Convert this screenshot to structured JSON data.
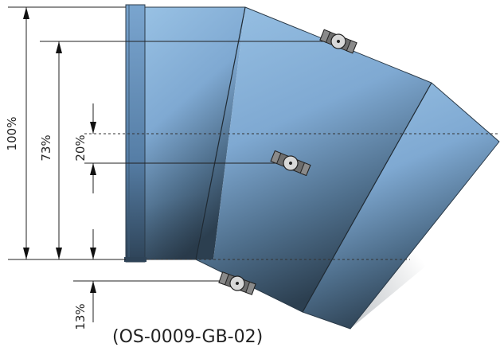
{
  "dimensions": {
    "full_height_label": "100%",
    "upper_valve_label": "73%",
    "middle_valve_label": "20%",
    "lower_valve_label": "13%"
  },
  "part_code": "(OS-0009-GB-02)",
  "colors": {
    "pipe_light": "#8fb9de",
    "pipe_mid": "#6f9ac4",
    "pipe_dark": "#2f4456",
    "flange": "#6d97c1",
    "valve": "#707070"
  },
  "icons": [
    "valve-icon-top",
    "valve-icon-middle",
    "valve-icon-bottom"
  ]
}
